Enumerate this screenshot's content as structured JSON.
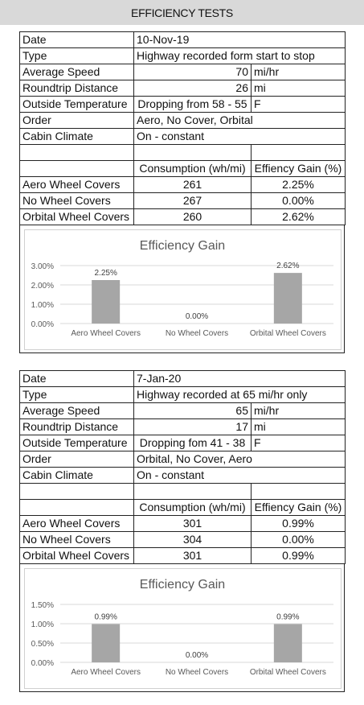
{
  "page_title": "EFFICIENCY TESTS",
  "tests": [
    {
      "date_label": "Date",
      "date": "10-Nov-19",
      "type_label": "Type",
      "type": "Highway recorded form start to stop",
      "speed_label": "Average Speed",
      "speed": "70",
      "speed_unit": "mi/hr",
      "distance_label": "Roundtrip Distance",
      "distance": "26",
      "distance_unit": "mi",
      "temp_label": "Outside Temperature",
      "temp": "Dropping from 58 - 55",
      "temp_unit": "F",
      "order_label": "Order",
      "order": "Aero, No Cover, Orbital",
      "climate_label": "Cabin Climate",
      "climate": "On - constant",
      "col_consumption": "Consumption (wh/mi)",
      "col_gain": "Effiency Gain (%)",
      "rows": [
        {
          "name": "Aero Wheel Covers",
          "consumption": "261",
          "gain": "2.25%"
        },
        {
          "name": "No Wheel Covers",
          "consumption": "267",
          "gain": "0.00%"
        },
        {
          "name": "Orbital Wheel Covers",
          "consumption": "260",
          "gain": "2.62%"
        }
      ]
    },
    {
      "date_label": "Date",
      "date": "7-Jan-20",
      "type_label": "Type",
      "type": "Highway recorded at 65 mi/hr only",
      "speed_label": "Average Speed",
      "speed": "65",
      "speed_unit": "mi/hr",
      "distance_label": "Roundtrip Distance",
      "distance": "17",
      "distance_unit": "mi",
      "temp_label": "Outside Temperature",
      "temp": "Dropping fom 41 - 38",
      "temp_unit": "F",
      "order_label": "Order",
      "order": "Orbital, No Cover, Aero",
      "climate_label": "Cabin Climate",
      "climate": "On - constant",
      "col_consumption": "Consumption (wh/mi)",
      "col_gain": "Effiency Gain (%)",
      "rows": [
        {
          "name": "Aero Wheel Covers",
          "consumption": "301",
          "gain": "0.99%"
        },
        {
          "name": "No Wheel Covers",
          "consumption": "304",
          "gain": "0.00%"
        },
        {
          "name": "Orbital Wheel Covers",
          "consumption": "301",
          "gain": "0.99%"
        }
      ]
    }
  ],
  "chart_data": [
    {
      "type": "bar",
      "title": "Efficiency Gain",
      "categories": [
        "Aero Wheel Covers",
        "No Wheel Covers",
        "Orbital Wheel Covers"
      ],
      "values": [
        2.25,
        0.0,
        2.62
      ],
      "value_labels": [
        "2.25%",
        "0.00%",
        "2.62%"
      ],
      "yticks": [
        "0.00%",
        "1.00%",
        "2.00%",
        "3.00%"
      ],
      "ytick_values": [
        0,
        1,
        2,
        3
      ],
      "ylim": [
        0,
        3
      ],
      "grid": true,
      "bar_color": "#a6a6a6",
      "grid_color": "#d9d9d9"
    },
    {
      "type": "bar",
      "title": "Efficiency Gain",
      "categories": [
        "Aero Wheel Covers",
        "No Wheel Covers",
        "Orbital Wheel Covers"
      ],
      "values": [
        0.99,
        0.0,
        0.99
      ],
      "value_labels": [
        "0.99%",
        "0.00%",
        "0.99%"
      ],
      "yticks": [
        "0.00%",
        "0.50%",
        "1.00%",
        "1.50%"
      ],
      "ytick_values": [
        0,
        0.5,
        1,
        1.5
      ],
      "ylim": [
        0,
        1.5
      ],
      "grid": true,
      "bar_color": "#a6a6a6",
      "grid_color": "#d9d9d9"
    }
  ]
}
